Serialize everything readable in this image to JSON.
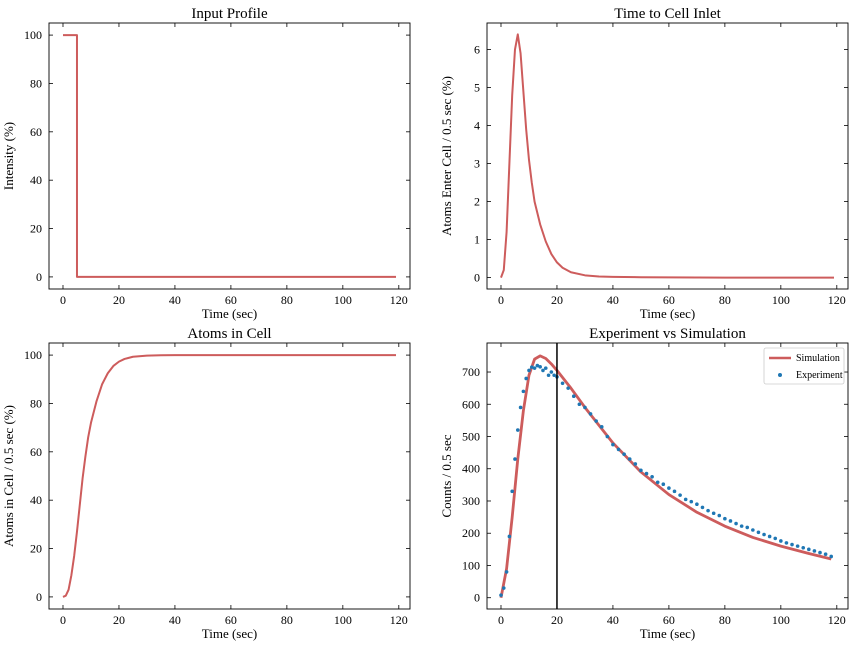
{
  "colors": {
    "simulation": "#cd5c5c",
    "experiment": "#1f77b4",
    "marker_line": "#000000",
    "axes": "#000000"
  },
  "chart_data": [
    {
      "id": "input-profile",
      "type": "line",
      "title": "Input Profile",
      "xlabel": "Time (sec)",
      "ylabel": "Intensity (%)",
      "xlim": [
        -5,
        124
      ],
      "ylim": [
        -5,
        105
      ],
      "xticks": [
        0,
        20,
        40,
        60,
        80,
        100,
        120
      ],
      "yticks": [
        0,
        20,
        40,
        60,
        80,
        100
      ],
      "series": [
        {
          "name": "Input",
          "x": [
            0,
            5,
            5,
            119
          ],
          "y": [
            100,
            100,
            0,
            0
          ]
        }
      ]
    },
    {
      "id": "time-to-cell-inlet",
      "type": "line",
      "title": "Time to Cell Inlet",
      "xlabel": "Time (sec)",
      "ylabel": "Atoms Enter Cell / 0.5 sec (%)",
      "xlim": [
        -5,
        124
      ],
      "ylim": [
        -0.3,
        6.7
      ],
      "xticks": [
        0,
        20,
        40,
        60,
        80,
        100,
        120
      ],
      "yticks": [
        0,
        1,
        2,
        3,
        4,
        5,
        6
      ],
      "series": [
        {
          "name": "Inlet",
          "x": [
            0,
            1,
            2,
            3,
            4,
            5,
            6,
            7,
            8,
            9,
            10,
            11,
            12,
            14,
            16,
            18,
            20,
            22,
            25,
            30,
            35,
            40,
            50,
            60,
            80,
            100,
            119
          ],
          "y": [
            0,
            0.2,
            1.2,
            3.0,
            4.8,
            6.0,
            6.4,
            5.9,
            4.9,
            3.9,
            3.1,
            2.5,
            2.0,
            1.4,
            0.95,
            0.62,
            0.4,
            0.26,
            0.14,
            0.06,
            0.03,
            0.02,
            0.01,
            0.005,
            0,
            0,
            0
          ]
        }
      ]
    },
    {
      "id": "atoms-in-cell",
      "type": "line",
      "title": "Atoms in Cell",
      "xlabel": "Time (sec)",
      "ylabel": "Atoms in Cell / 0.5 sec (%)",
      "xlim": [
        -5,
        124
      ],
      "ylim": [
        -5,
        105
      ],
      "xticks": [
        0,
        20,
        40,
        60,
        80,
        100,
        120
      ],
      "yticks": [
        0,
        20,
        40,
        60,
        80,
        100
      ],
      "series": [
        {
          "name": "Atoms",
          "x": [
            0,
            1,
            2,
            3,
            4,
            5,
            6,
            7,
            8,
            9,
            10,
            12,
            14,
            16,
            18,
            20,
            22,
            25,
            30,
            35,
            40,
            50,
            60,
            80,
            100,
            119
          ],
          "y": [
            0,
            0.5,
            3,
            9,
            17,
            27,
            38,
            49,
            58,
            66,
            72,
            81,
            88,
            92.5,
            95.5,
            97.3,
            98.4,
            99.3,
            99.8,
            99.95,
            100,
            100,
            100,
            100,
            100,
            100
          ]
        }
      ]
    },
    {
      "id": "experiment-vs-simulation",
      "type": "line",
      "title": "Experiment vs Simulation",
      "xlabel": "Time (sec)",
      "ylabel": "Counts / 0.5 sec",
      "xlim": [
        -5,
        124
      ],
      "ylim": [
        -35,
        790
      ],
      "xticks": [
        0,
        20,
        40,
        60,
        80,
        100,
        120
      ],
      "yticks": [
        0,
        100,
        200,
        300,
        400,
        500,
        600,
        700
      ],
      "vline_x": 20,
      "legend": {
        "position": "top-right",
        "entries": [
          "Simulation",
          "Experiment"
        ]
      },
      "series": [
        {
          "name": "Simulation",
          "style": "line",
          "x": [
            0,
            2,
            4,
            6,
            8,
            10,
            12,
            14,
            16,
            18,
            20,
            25,
            30,
            40,
            50,
            60,
            70,
            80,
            90,
            100,
            110,
            118
          ],
          "y": [
            0,
            90,
            250,
            430,
            580,
            690,
            740,
            750,
            742,
            725,
            705,
            650,
            590,
            480,
            390,
            320,
            265,
            222,
            187,
            160,
            137,
            120
          ]
        },
        {
          "name": "Experiment",
          "style": "scatter",
          "x": [
            0,
            1,
            2,
            3,
            4,
            5,
            6,
            7,
            8,
            9,
            10,
            11,
            12,
            13,
            14,
            15,
            16,
            17,
            18,
            19,
            20,
            22,
            24,
            26,
            28,
            30,
            32,
            34,
            36,
            38,
            40,
            42,
            44,
            46,
            48,
            50,
            52,
            54,
            56,
            58,
            60,
            62,
            64,
            66,
            68,
            70,
            72,
            74,
            76,
            78,
            80,
            82,
            84,
            86,
            88,
            90,
            92,
            94,
            96,
            98,
            100,
            102,
            104,
            106,
            108,
            110,
            112,
            114,
            116,
            118
          ],
          "y": [
            8,
            30,
            80,
            190,
            330,
            430,
            520,
            590,
            640,
            680,
            705,
            715,
            712,
            720,
            716,
            705,
            712,
            690,
            700,
            690,
            685,
            665,
            650,
            625,
            600,
            590,
            570,
            548,
            530,
            500,
            475,
            460,
            445,
            430,
            415,
            395,
            385,
            375,
            358,
            352,
            340,
            330,
            318,
            305,
            298,
            290,
            280,
            270,
            262,
            255,
            245,
            238,
            230,
            222,
            218,
            210,
            203,
            196,
            190,
            184,
            176,
            170,
            165,
            160,
            155,
            150,
            145,
            140,
            135,
            128
          ]
        }
      ]
    }
  ]
}
